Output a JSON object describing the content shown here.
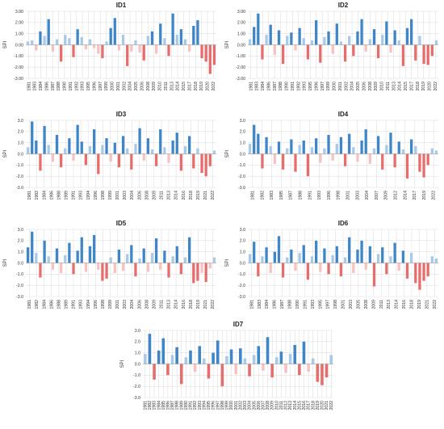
{
  "layout_hint": "seven SPI bar panels arranged 2-2-2-1",
  "colors": {
    "positive_light": "#a9c9e8",
    "positive_dark": "#3f86c9",
    "negative_light": "#f6c2c2",
    "negative_dark": "#e76d6d"
  },
  "chart_data": [
    {
      "type": "bar",
      "title": "ID1",
      "ylabel": "SPI",
      "xlabel": "",
      "ylim": [
        -3,
        3
      ],
      "yticks": [
        "3.00",
        "2.00",
        "1.00",
        "0.00",
        "-1.00",
        "-2.00",
        "-3.00"
      ],
      "x_tick_labels": [
        "1981",
        "1983",
        "1984",
        "1986",
        "1987",
        "1988",
        "1990",
        "1991",
        "1992",
        "1993",
        "1995",
        "1996",
        "1997",
        "1999",
        "2000",
        "2001",
        "2002",
        "2004",
        "2005",
        "2006",
        "2008",
        "2009",
        "2010",
        "2011",
        "2013",
        "2014",
        "2015",
        "2017",
        "2018",
        "2019",
        "2020",
        "2022"
      ],
      "series": [
        {
          "values": [
            0.3,
            0.4,
            -0.5,
            1.2,
            0.8,
            2.3,
            -0.6,
            0.5,
            -1.5,
            0.9,
            0.6,
            -1.1,
            1.4,
            0.7,
            -0.4,
            0.5,
            -0.3,
            -0.8,
            -1.2,
            0.3,
            1.5,
            2.4,
            -0.5,
            0.9,
            -1.9,
            -0.6,
            0.4,
            -0.7,
            -1.4,
            0.8,
            1.2,
            -0.8,
            1.9,
            0.6,
            -1.0,
            2.8,
            0.9,
            1.4,
            0.5,
            -0.6,
            1.7,
            2.2,
            -1.2,
            -1.5,
            -2.6,
            -1.8
          ]
        }
      ]
    },
    {
      "type": "bar",
      "title": "ID2",
      "ylabel": "SPI",
      "xlabel": "",
      "ylim": [
        -3,
        3
      ],
      "yticks": [
        "3.00",
        "2.00",
        "1.00",
        "0.00",
        "-1.00",
        "-2.00",
        "-3.00"
      ],
      "x_tick_labels": [
        "1981",
        "1983",
        "1984",
        "1986",
        "1987",
        "1988",
        "1990",
        "1991",
        "1992",
        "1993",
        "1995",
        "1996",
        "1997",
        "1999",
        "2000",
        "2001",
        "2002",
        "2004",
        "2005",
        "2006",
        "2008",
        "2009",
        "2010",
        "2011",
        "2013",
        "2014",
        "2015",
        "2017",
        "2018",
        "2019",
        "2020",
        "2022"
      ],
      "series": [
        {
          "values": [
            0.5,
            1.6,
            2.8,
            -1.3,
            0.9,
            1.8,
            -0.9,
            1.3,
            -1.7,
            0.8,
            1.1,
            -0.5,
            1.5,
            0.6,
            -1.3,
            0.4,
            2.2,
            -1.6,
            0.7,
            1.2,
            -0.8,
            1.9,
            0.3,
            -1.5,
            0.8,
            -1.0,
            1.2,
            2.3,
            -0.6,
            0.5,
            1.4,
            -1.2,
            0.9,
            2.1,
            -0.7,
            1.3,
            0.4,
            -1.9,
            1.5,
            2.3,
            -1.4,
            0.8,
            -1.7,
            -1.8,
            -1.0,
            0.4
          ]
        }
      ]
    },
    {
      "type": "bar",
      "title": "ID3",
      "ylabel": "SPI",
      "xlabel": "",
      "ylim": [
        -3,
        3
      ],
      "yticks": [
        "3.0",
        "2.0",
        "1.0",
        "0.0",
        "-1.0",
        "-2.0",
        "-3.0"
      ],
      "x_tick_labels": [
        "1981",
        "1982",
        "1984",
        "1986",
        "1988",
        "1989",
        "1991",
        "1993",
        "1994",
        "1996",
        "1998",
        "1999",
        "2001",
        "2003",
        "2004",
        "2006",
        "2008",
        "2009",
        "2011",
        "2013",
        "2014",
        "2016",
        "2018",
        "2019",
        "2021",
        "2022"
      ],
      "series": [
        {
          "values": [
            0.6,
            2.9,
            1.2,
            -1.5,
            2.5,
            0.8,
            -0.7,
            1.7,
            -1.2,
            0.5,
            1.4,
            -0.6,
            2.6,
            1.1,
            -1.0,
            0.7,
            2.2,
            -1.8,
            0.8,
            1.4,
            -0.7,
            1.0,
            -1.2,
            1.6,
            0.5,
            -1.4,
            0.9,
            2.3,
            -0.6,
            1.4,
            0.4,
            -1.1,
            2.2,
            0.6,
            -0.8,
            1.2,
            1.9,
            -1.5,
            0.7,
            1.6,
            -1.3,
            0.5,
            -1.7,
            -2.0,
            -1.1,
            0.3
          ]
        }
      ]
    },
    {
      "type": "bar",
      "title": "ID4",
      "ylabel": "SPI",
      "xlabel": "",
      "ylim": [
        -3,
        3
      ],
      "yticks": [
        "3.0",
        "2.0",
        "1.0",
        "0.0",
        "-1.0",
        "-2.0",
        "-3.0"
      ],
      "x_tick_labels": [
        "1981",
        "1982",
        "1983",
        "1985",
        "1987",
        "1988",
        "1991",
        "1993",
        "1996",
        "1998",
        "2001",
        "2003",
        "2004",
        "2007",
        "2009",
        "2012",
        "2014",
        "2017",
        "2019",
        "2022"
      ],
      "series": [
        {
          "values": [
            0.9,
            2.6,
            1.8,
            -1.3,
            1.5,
            0.7,
            -0.9,
            1.1,
            -1.4,
            0.5,
            1.3,
            -1.6,
            0.8,
            1.2,
            -2.0,
            0.6,
            1.4,
            -0.8,
            0.5,
            1.7,
            -0.6,
            0.9,
            1.5,
            -1.1,
            1.8,
            0.6,
            -0.7,
            1.2,
            2.2,
            -0.9,
            0.5,
            1.6,
            -1.4,
            0.8,
            1.9,
            -1.2,
            1.1,
            0.4,
            -2.2,
            1.3,
            0.7,
            -1.6,
            -2.1,
            -1.0,
            0.5,
            0.3
          ]
        }
      ]
    },
    {
      "type": "bar",
      "title": "ID5",
      "ylabel": "SPI",
      "xlabel": "",
      "ylim": [
        -3,
        3
      ],
      "yticks": [
        "3.0",
        "2.0",
        "1.0",
        "0.0",
        "-1.0",
        "-2.0",
        "-3.0"
      ],
      "x_tick_labels": [
        "1981",
        "1982",
        "1984",
        "1986",
        "1988",
        "1989",
        "1991",
        "1993",
        "1994",
        "1996",
        "1998",
        "1999",
        "2001",
        "2003",
        "2004",
        "2006",
        "2008",
        "2009",
        "2011",
        "2013",
        "2014",
        "2016",
        "2018",
        "2019",
        "2021",
        "2022"
      ],
      "series": [
        {
          "values": [
            1.4,
            2.8,
            0.9,
            -1.3,
            2.0,
            0.6,
            -0.6,
            1.3,
            -0.9,
            0.7,
            1.8,
            -1.0,
            1.1,
            2.3,
            -0.8,
            1.5,
            2.5,
            -0.6,
            -1.6,
            -1.4,
            0.5,
            -0.9,
            1.2,
            -0.7,
            0.8,
            1.6,
            -1.2,
            0.4,
            1.3,
            -0.8,
            0.9,
            2.2,
            -0.6,
            1.1,
            -1.3,
            0.6,
            1.5,
            -1.0,
            0.5,
            2.3,
            -1.8,
            -1.6,
            -0.9,
            -1.7,
            -0.5,
            0.5
          ]
        }
      ]
    },
    {
      "type": "bar",
      "title": "ID6",
      "ylabel": "SPI",
      "xlabel": "",
      "ylim": [
        -3,
        3
      ],
      "yticks": [
        "3.0",
        "2.0",
        "1.0",
        "0.0",
        "-1.0",
        "-2.0",
        "-3.0"
      ],
      "x_tick_labels": [
        "1981",
        "1983",
        "1984",
        "1986",
        "1987",
        "1988",
        "1990",
        "1991",
        "1993",
        "1995",
        "1997",
        "1998",
        "2001",
        "2003",
        "2005",
        "2008",
        "2009",
        "2011",
        "2013",
        "2014",
        "2016",
        "2018",
        "2019",
        "2021",
        "2022"
      ],
      "series": [
        {
          "values": [
            0.8,
            1.9,
            -1.2,
            0.6,
            1.4,
            -0.9,
            1.0,
            2.4,
            -1.3,
            0.5,
            1.2,
            -0.7,
            0.9,
            1.6,
            -1.5,
            0.6,
            2.0,
            -0.8,
            1.3,
            -1.0,
            0.7,
            1.5,
            -1.2,
            0.5,
            2.3,
            -0.9,
            1.2,
            2.0,
            -0.6,
            1.5,
            -2.1,
            0.8,
            1.4,
            -1.0,
            0.6,
            1.8,
            -0.7,
            1.1,
            -1.4,
            0.9,
            -1.8,
            -2.4,
            -1.6,
            -1.2,
            0.6,
            0.4
          ]
        }
      ]
    },
    {
      "type": "bar",
      "title": "ID7",
      "ylabel": "SPI",
      "xlabel": "",
      "ylim": [
        -3,
        3
      ],
      "yticks": [
        "3.0",
        "2.0",
        "1.0",
        "0.0",
        "-1.0",
        "-2.0",
        "-3.0"
      ],
      "x_tick_labels": [
        "1981",
        "1982",
        "1983",
        "1984",
        "1985",
        "1986",
        "1987",
        "1988",
        "1989",
        "1990",
        "1991",
        "1992",
        "1993",
        "1994",
        "1995",
        "1996",
        "1997",
        "1998",
        "1999",
        "2000",
        "2001",
        "2002",
        "2003",
        "2004",
        "2005",
        "2006",
        "2007",
        "2008",
        "2009",
        "2010",
        "2011",
        "2012",
        "2013",
        "2014",
        "2015",
        "2016",
        "2017",
        "2018",
        "2019",
        "2020",
        "2021",
        "2022"
      ],
      "series": [
        {
          "values": [
            0.9,
            2.7,
            -1.4,
            1.2,
            2.3,
            -1.0,
            0.8,
            1.5,
            -1.8,
            0.6,
            1.2,
            -0.7,
            1.6,
            0.5,
            -1.3,
            1.0,
            2.1,
            -2.0,
            0.7,
            1.3,
            -0.9,
            1.4,
            0.5,
            -1.1,
            0.8,
            1.6,
            -0.6,
            2.4,
            -1.2,
            0.6,
            1.1,
            -0.8,
            0.9,
            1.7,
            -1.0,
            2.0,
            -0.7,
            0.5,
            -1.6,
            -1.9,
            -1.2,
            0.8
          ]
        }
      ]
    }
  ]
}
